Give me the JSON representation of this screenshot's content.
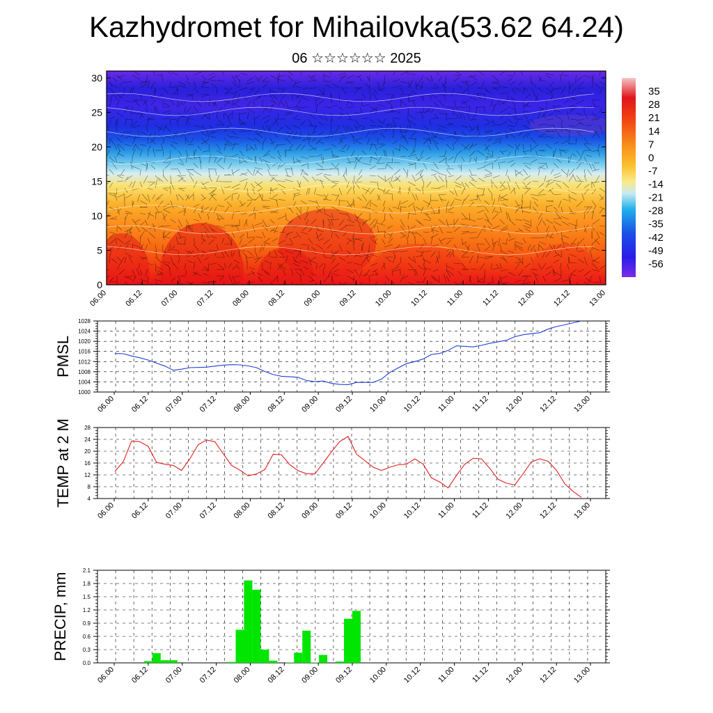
{
  "title": "Kazhydromet for Mihailovka(53.62 64.24)",
  "subtitle": "06 ☆☆☆☆☆☆ 2025",
  "colors": {
    "pmsl_line": "#1f3fd6",
    "temp_line": "#e02020",
    "precip_bar": "#00e600",
    "grid": "#000000"
  },
  "chart_data": [
    {
      "type": "heatmap",
      "name": "cross-section",
      "x_ticks": [
        "06.00",
        "06.12",
        "07.00",
        "07.12",
        "08.00",
        "08.12",
        "09.00",
        "09.12",
        "10.00",
        "10.12",
        "11.00",
        "11.12",
        "12.00",
        "12.12",
        "13.00"
      ],
      "y_ticks": [
        0,
        5,
        10,
        15,
        20,
        25,
        30
      ],
      "ylim": [
        0,
        31
      ],
      "colorbar_labels": [
        "35",
        "28",
        "21",
        "14",
        "7",
        "0",
        "-7",
        "-14",
        "-21",
        "-28",
        "-35",
        "-42",
        "-49",
        "-56"
      ],
      "colorbar_range": [
        -63,
        42
      ],
      "note_overlay": "wind barbs and temperature contours"
    },
    {
      "type": "line",
      "name": "pmsl",
      "ylabel": "PMSL",
      "ylim": [
        1000,
        1028
      ],
      "y_ticks": [
        1000,
        1004,
        1008,
        1012,
        1016,
        1020,
        1024,
        1028
      ],
      "x_ticks": [
        "06.00",
        "06.12",
        "07.00",
        "07.12",
        "08.00",
        "08.12",
        "09.00",
        "09.12",
        "10.00",
        "10.12",
        "11.00",
        "11.12",
        "12.00",
        "12.12",
        "13.00"
      ],
      "x": [
        0,
        3,
        6,
        9,
        12,
        15,
        18,
        21,
        24,
        27,
        30,
        33,
        36,
        39,
        42,
        45,
        48,
        51,
        54,
        57,
        60,
        63,
        66,
        69,
        72,
        75,
        78,
        81,
        84,
        87,
        90,
        93,
        96,
        99,
        102,
        105,
        108,
        111,
        114,
        117,
        120,
        123,
        126,
        129,
        132,
        135,
        138,
        141,
        144,
        147,
        150,
        153,
        156,
        159,
        162,
        165,
        168
      ],
      "values": [
        1015.2,
        1015.1,
        1014.2,
        1013.5,
        1012.6,
        1011.4,
        1010.2,
        1008.6,
        1009.0,
        1009.6,
        1009.7,
        1009.8,
        1010.2,
        1010.6,
        1010.8,
        1010.7,
        1010.3,
        1009.6,
        1008.1,
        1006.9,
        1006.2,
        1006.0,
        1005.8,
        1004.5,
        1004.1,
        1004.3,
        1003.4,
        1003.0,
        1002.9,
        1003.8,
        1003.8,
        1003.8,
        1005.1,
        1007.7,
        1009.5,
        1011.2,
        1012.0,
        1013.0,
        1014.8,
        1015.2,
        1016.4,
        1018.2,
        1018.0,
        1017.8,
        1018.4,
        1019.2,
        1019.8,
        1020.4,
        1021.8,
        1022.6,
        1023.0,
        1023.4,
        1024.8,
        1025.8,
        1026.5,
        1027.3,
        1028.0
      ]
    },
    {
      "type": "line",
      "name": "temp",
      "ylabel": "TEMP at 2 M",
      "ylim": [
        4,
        28
      ],
      "y_ticks": [
        4,
        8,
        12,
        16,
        20,
        24,
        28
      ],
      "x_ticks": [
        "06.00",
        "06.12",
        "07.00",
        "07.12",
        "08.00",
        "08.12",
        "09.00",
        "09.12",
        "10.00",
        "10.12",
        "11.00",
        "11.12",
        "12.00",
        "12.12",
        "13.00"
      ],
      "x": [
        0,
        3,
        6,
        9,
        12,
        15,
        18,
        21,
        24,
        27,
        30,
        33,
        36,
        39,
        42,
        45,
        48,
        51,
        54,
        57,
        60,
        63,
        66,
        69,
        72,
        75,
        78,
        81,
        84,
        87,
        90,
        93,
        96,
        99,
        102,
        105,
        108,
        111,
        114,
        117,
        120,
        123,
        126,
        129,
        132,
        135,
        138,
        141,
        144,
        147,
        150,
        153,
        156,
        159,
        162,
        165,
        168
      ],
      "values": [
        13.2,
        16.4,
        23.4,
        23.2,
        21.6,
        16.2,
        15.6,
        15.2,
        13.5,
        17.4,
        22.2,
        23.8,
        23.2,
        19.2,
        15.2,
        13.6,
        11.7,
        12.3,
        13.8,
        19.0,
        18.8,
        15.4,
        13.4,
        12.4,
        12.3,
        16.0,
        19.8,
        23.3,
        25.0,
        19.0,
        16.8,
        14.6,
        13.5,
        14.6,
        15.4,
        15.6,
        17.4,
        15.6,
        11.0,
        9.6,
        7.6,
        11.8,
        15.6,
        17.6,
        17.4,
        14.2,
        10.5,
        9.2,
        8.6,
        12.4,
        16.4,
        17.4,
        16.6,
        13.6,
        9.0,
        6.4,
        4.4
      ]
    },
    {
      "type": "bar",
      "name": "precip",
      "ylabel": "PRECIP, mm",
      "ylim": [
        0,
        2.1
      ],
      "y_ticks": [
        "0.0",
        "0.3",
        "0.6",
        "0.9",
        "1.2",
        "1.5",
        "1.8",
        "2.1"
      ],
      "x_ticks": [
        "06.00",
        "06.12",
        "07.00",
        "07.12",
        "08.00",
        "08.12",
        "09.00",
        "09.12",
        "10.00",
        "10.12",
        "11.00",
        "11.12",
        "12.00",
        "12.12",
        "13.00"
      ],
      "x": [
        12,
        15,
        18,
        21,
        42,
        45,
        48,
        51,
        54,
        57,
        63,
        66,
        69,
        72,
        75,
        81,
        84,
        87
      ],
      "values": [
        0.04,
        0.22,
        0.06,
        0.06,
        0.02,
        0.75,
        1.87,
        1.66,
        0.3,
        0.05,
        0.01,
        0.23,
        0.73,
        0.01,
        0.18,
        0.03,
        1.0,
        1.18
      ]
    }
  ]
}
